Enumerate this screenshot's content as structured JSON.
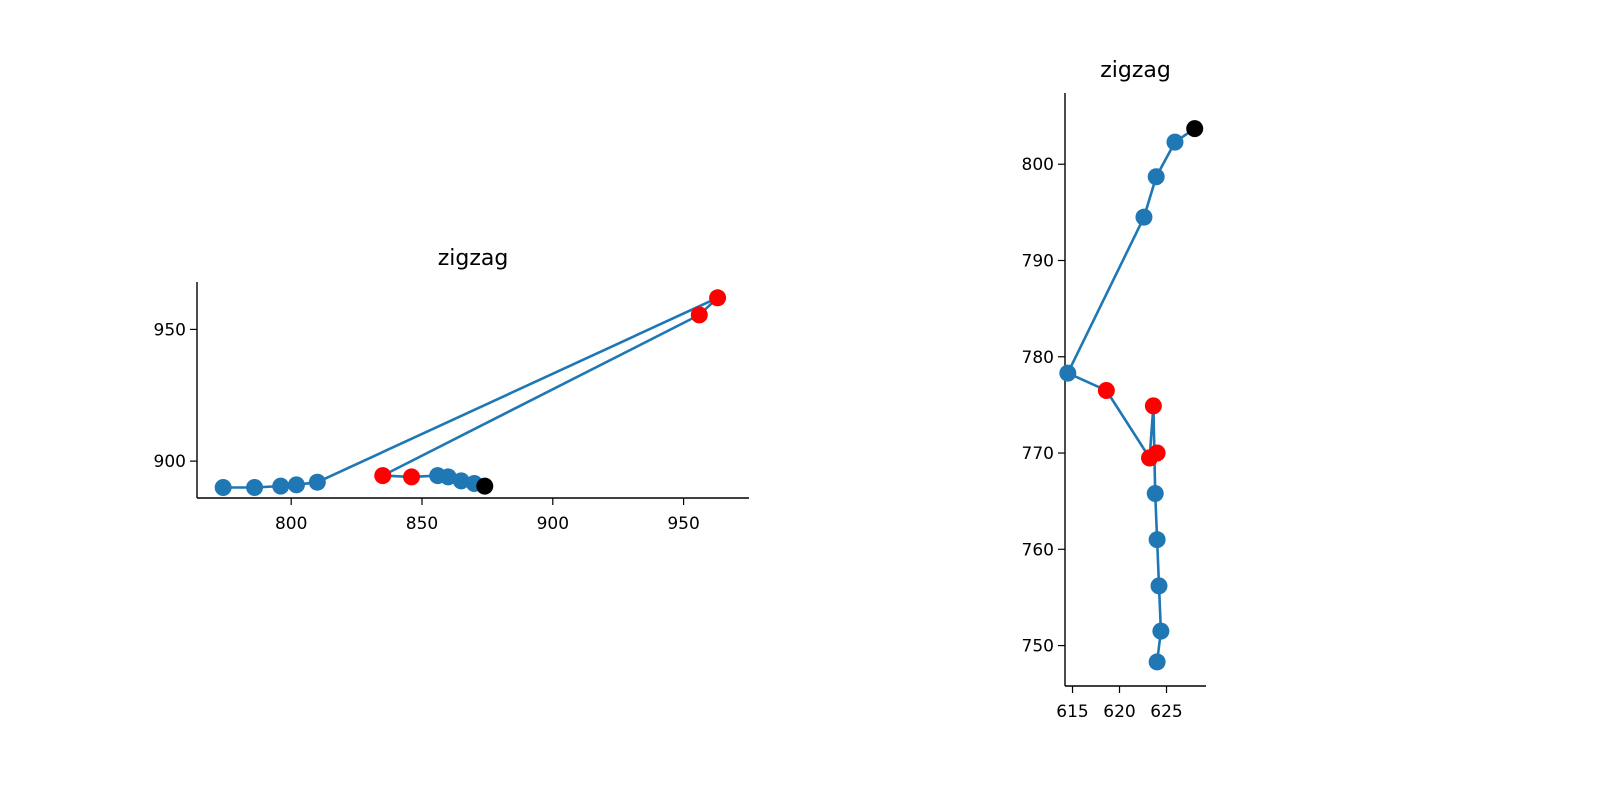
{
  "colors": {
    "line": "#1f77b4",
    "normal_point": "#1f77b4",
    "highlight_point": "#ff0000",
    "last_point": "#000000"
  },
  "chart_data": [
    {
      "type": "line",
      "title": "zigzag",
      "xlabel": "",
      "ylabel": "",
      "xlim": [
        764,
        975
      ],
      "ylim": [
        886,
        968
      ],
      "xticks": [
        800,
        850,
        900,
        950
      ],
      "yticks": [
        900,
        950
      ],
      "xtick_labels": [
        "800",
        "850",
        "900",
        "950"
      ],
      "ytick_labels": [
        "900",
        "950"
      ],
      "grid": false,
      "points": [
        {
          "x": 774,
          "y": 890,
          "kind": "normal"
        },
        {
          "x": 786,
          "y": 890,
          "kind": "normal"
        },
        {
          "x": 796,
          "y": 890.5,
          "kind": "normal"
        },
        {
          "x": 802,
          "y": 891,
          "kind": "normal"
        },
        {
          "x": 810,
          "y": 892,
          "kind": "normal"
        },
        {
          "x": 963,
          "y": 962,
          "kind": "highlight"
        },
        {
          "x": 956,
          "y": 955.5,
          "kind": "highlight"
        },
        {
          "x": 835,
          "y": 894.5,
          "kind": "highlight"
        },
        {
          "x": 846,
          "y": 894,
          "kind": "highlight"
        },
        {
          "x": 856,
          "y": 894.5,
          "kind": "normal"
        },
        {
          "x": 860,
          "y": 894,
          "kind": "normal"
        },
        {
          "x": 865,
          "y": 892.5,
          "kind": "normal"
        },
        {
          "x": 870,
          "y": 891.5,
          "kind": "normal"
        },
        {
          "x": 874,
          "y": 890.5,
          "kind": "last"
        }
      ]
    },
    {
      "type": "line",
      "title": "zigzag",
      "xlabel": "",
      "ylabel": "",
      "xlim": [
        614.2,
        629.2
      ],
      "ylim": [
        745.8,
        807.4
      ],
      "xticks": [
        615,
        620,
        625
      ],
      "yticks": [
        750,
        760,
        770,
        780,
        790,
        800
      ],
      "xtick_labels": [
        "615",
        "620",
        "625"
      ],
      "ytick_labels": [
        "750",
        "760",
        "770",
        "780",
        "790",
        "800"
      ],
      "grid": false,
      "points": [
        {
          "x": 624,
          "y": 748.3,
          "kind": "normal"
        },
        {
          "x": 624.4,
          "y": 751.5,
          "kind": "normal"
        },
        {
          "x": 624.2,
          "y": 756.2,
          "kind": "normal"
        },
        {
          "x": 624,
          "y": 761,
          "kind": "normal"
        },
        {
          "x": 623.8,
          "y": 765.8,
          "kind": "normal"
        },
        {
          "x": 623.6,
          "y": 774.9,
          "kind": "highlight"
        },
        {
          "x": 623.2,
          "y": 769.5,
          "kind": "highlight"
        },
        {
          "x": 624,
          "y": 770,
          "kind": "highlight"
        },
        {
          "x": 623.2,
          "y": 769.5,
          "kind": "highlight"
        },
        {
          "x": 618.6,
          "y": 776.5,
          "kind": "highlight"
        },
        {
          "x": 614.5,
          "y": 778.3,
          "kind": "normal"
        },
        {
          "x": 622.6,
          "y": 794.5,
          "kind": "normal"
        },
        {
          "x": 623.9,
          "y": 798.7,
          "kind": "normal"
        },
        {
          "x": 625.9,
          "y": 802.3,
          "kind": "normal"
        },
        {
          "x": 628,
          "y": 803.7,
          "kind": "last"
        }
      ]
    }
  ]
}
